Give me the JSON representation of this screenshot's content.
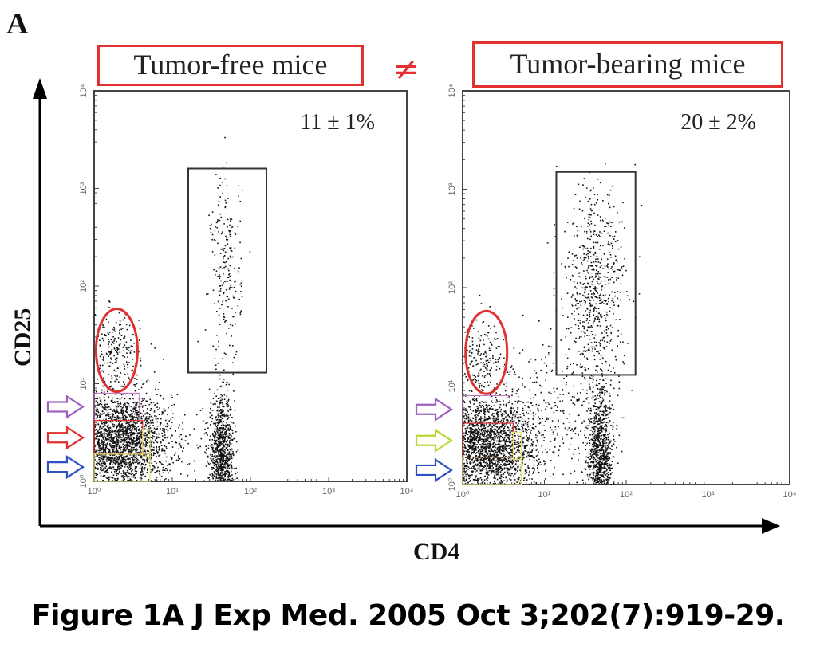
{
  "figure": {
    "panel_label": "A",
    "caption": "Figure 1A J Exp Med. 2005 Oct 3;202(7):919-29.",
    "comparison_symbol": "≠",
    "x_axis_title": "CD4",
    "y_axis_title": "CD25"
  },
  "colors": {
    "highlight_red": "#e03030",
    "arrow_purple": "#a060c0",
    "arrow_red": "#e03030",
    "arrow_blue": "#3050c0",
    "arrow_yellowgreen": "#b8d830",
    "gate_yellow": "#e8e070",
    "gate_magenta": "#c070c0"
  },
  "chart_data": [
    {
      "type": "scatter",
      "title": "Tumor-free mice",
      "xlabel": "CD4",
      "ylabel": "CD25",
      "x_scale": "log",
      "y_scale": "log",
      "xlim": [
        1,
        10000
      ],
      "ylim": [
        1,
        10000
      ],
      "x_ticks": [
        "10⁰",
        "10¹",
        "10²",
        "10³",
        "10⁴"
      ],
      "y_ticks": [
        "10⁰",
        "10¹",
        "10²",
        "10³",
        "10⁴"
      ],
      "grid": false,
      "annotation": "11 ± 1%",
      "gate": {
        "name": "CD4+CD25+ gate",
        "x_range": [
          16,
          160
        ],
        "y_range": [
          13,
          1600
        ],
        "percent_label": "11 ± 1%"
      },
      "populations": [
        {
          "name": "CD4- CD25- main cluster",
          "x_center": 2,
          "y_center": 2.5,
          "x_spread": 0.35,
          "y_spread": 0.25,
          "density": "very high"
        },
        {
          "name": "CD4+ CD25- cluster",
          "x_center": 42,
          "y_center": 1.8,
          "x_spread": 0.08,
          "y_spread": 0.3,
          "density": "high"
        },
        {
          "name": "CD4+ CD25+ cells",
          "x_center": 48,
          "y_center": 150,
          "x_spread": 0.1,
          "y_spread": 0.5,
          "density": "low"
        },
        {
          "name": "CD4- CD25 intermediate (circled)",
          "x_center": 1.9,
          "y_center": 20,
          "x_spread": 0.15,
          "y_spread": 0.2,
          "density": "low"
        }
      ],
      "arrows": [
        "purple",
        "red",
        "blue"
      ]
    },
    {
      "type": "scatter",
      "title": "Tumor-bearing mice",
      "xlabel": "CD4",
      "ylabel": "CD25",
      "x_scale": "log",
      "y_scale": "log",
      "xlim": [
        1,
        10000
      ],
      "ylim": [
        1,
        10000
      ],
      "x_ticks": [
        "10⁰",
        "10¹",
        "10²",
        "10³",
        "10⁴"
      ],
      "y_ticks": [
        "10⁰",
        "10¹",
        "10²",
        "10³",
        "10⁴"
      ],
      "grid": false,
      "annotation": "20 ± 2%",
      "gate": {
        "name": "CD4+CD25+ gate",
        "x_range": [
          14,
          130
        ],
        "y_range": [
          13,
          1500
        ],
        "percent_label": "20 ± 2%"
      },
      "populations": [
        {
          "name": "CD4- CD25- main cluster",
          "x_center": 1.8,
          "y_center": 2.5,
          "x_spread": 0.35,
          "y_spread": 0.25,
          "density": "very high"
        },
        {
          "name": "CD4+ CD25- cluster",
          "x_center": 48,
          "y_center": 2,
          "x_spread": 0.08,
          "y_spread": 0.35,
          "density": "high"
        },
        {
          "name": "CD4+ CD25+ cells",
          "x_center": 40,
          "y_center": 80,
          "x_spread": 0.18,
          "y_spread": 0.55,
          "density": "medium"
        },
        {
          "name": "Intermediate CD4 scatter",
          "x_center": 12,
          "y_center": 5,
          "x_spread": 0.35,
          "y_spread": 0.35,
          "density": "low"
        },
        {
          "name": "CD4- CD25 intermediate (circled)",
          "x_center": 1.6,
          "y_center": 20,
          "x_spread": 0.15,
          "y_spread": 0.2,
          "density": "low"
        }
      ],
      "arrows": [
        "purple",
        "yellowgreen",
        "blue"
      ]
    }
  ]
}
